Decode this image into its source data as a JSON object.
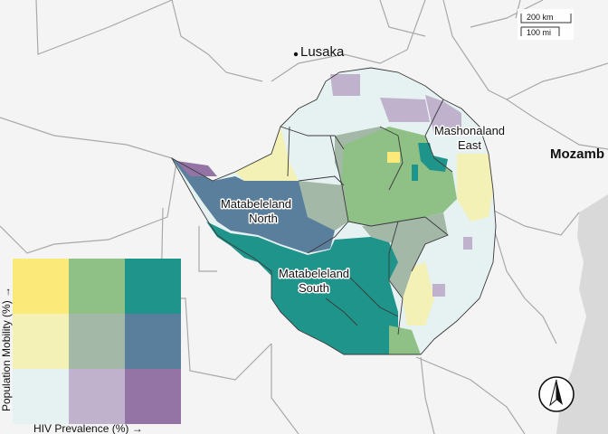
{
  "places": {
    "capital": "Lusaka",
    "country_partial": "Mozamb"
  },
  "regions": [
    {
      "key": "mashonaland_east",
      "line1": "Mashonaland",
      "line2": "East"
    },
    {
      "key": "matabeleland_north",
      "line1": "Matabeleland",
      "line2": "North"
    },
    {
      "key": "matabeleland_south",
      "line1": "Matabeleland",
      "line2": "South"
    }
  ],
  "scale_bar": {
    "km_label": "200 km",
    "mi_label": "100 mi"
  },
  "legend": {
    "y_axis_label": "Population Mobility (%) →",
    "x_axis_label": "HIV Prevalence (%) →",
    "grid_colors": [
      [
        "#fbe97a",
        "#8fc187",
        "#1f948a"
      ],
      [
        "#f3f1b6",
        "#a3b8a7",
        "#5a7f9c"
      ],
      [
        "#e6f1f1",
        "#c0b2cc",
        "#9474a4"
      ]
    ]
  },
  "colors": {
    "sea_land": "#f4f4f4",
    "ocean": "#d9d9d9",
    "border": "#9a9a9a",
    "district": "#3a3a3a"
  },
  "icons": {
    "north_arrow": "north-arrow-icon"
  }
}
